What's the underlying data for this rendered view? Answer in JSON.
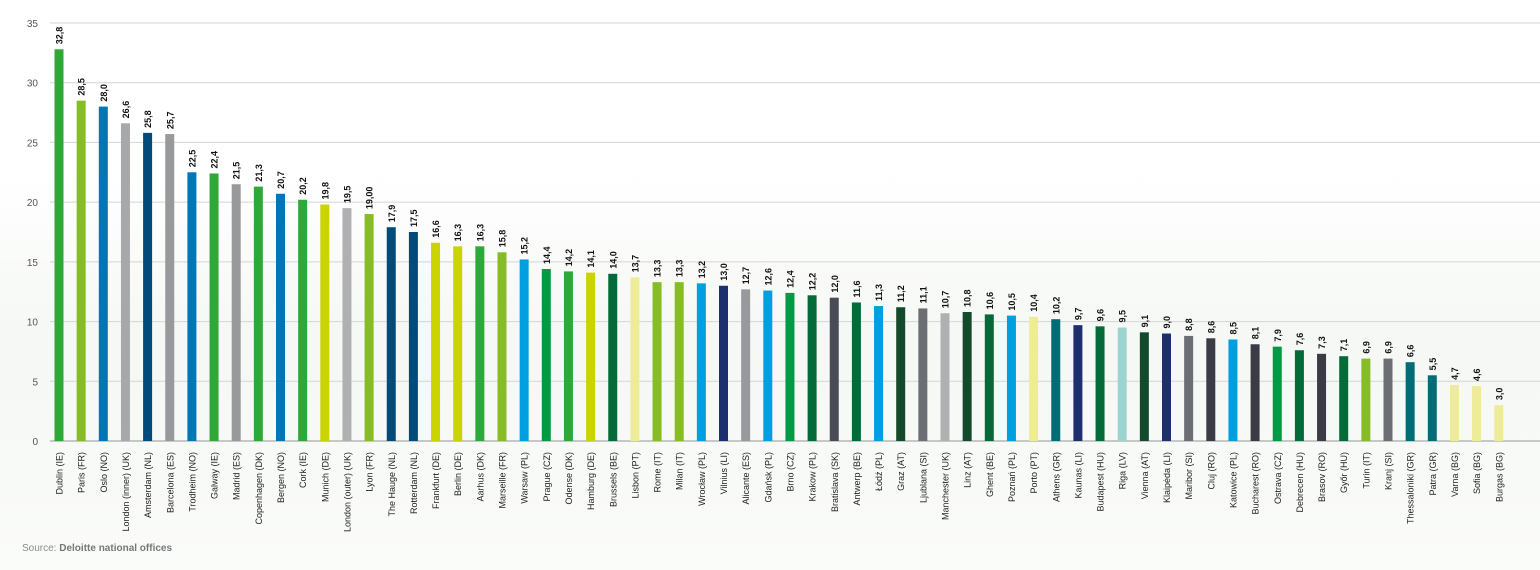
{
  "chart_data": {
    "type": "bar",
    "title": "",
    "xlabel": "",
    "ylabel": "",
    "ylim": [
      0,
      35
    ],
    "yticks": [
      0,
      5,
      10,
      15,
      20,
      25,
      30,
      35
    ],
    "grid": true,
    "legend": "none",
    "categories": [
      "Dublin (IE)",
      "Paris (FR)",
      "Oslo (NO)",
      "London (inner) (UK)",
      "Amsterdam (NL)",
      "Barcelona (ES)",
      "Trodheim (NO)",
      "Galway (IE)",
      "Madrid (ES)",
      "Copenhagen (DK)",
      "Bergen (NO)",
      "Cork (IE)",
      "Munich (DE)",
      "London (outer) (UK)",
      "Lyon (FR)",
      "The Hauge (NL)",
      "Rotterdam (NL)",
      "Frankfurt (DE)",
      "Berlin (DE)",
      "Aarhus (DK)",
      "Marseille (FR)",
      "Warsaw (PL)",
      "Prague (CZ)",
      "Odense (DK)",
      "Hamburg (DE)",
      "Brussels (BE)",
      "Lisbon (PT)",
      "Rome (IT)",
      "Milan (IT)",
      "Wrocław (PL)",
      "Vilnius (LI)",
      "Alicante (ES)",
      "Gdańsk (PL)",
      "Brno (CZ)",
      "Krakow (PL)",
      "Bratislava (SK)",
      "Antwerp (BE)",
      "Łódź (PL)",
      "Graz (AT)",
      "Ljublana (SI)",
      "Manchester (UK)",
      "Linz (AT)",
      "Ghent (BE)",
      "Poznań (PL)",
      "Porto (PT)",
      "Athens (GR)",
      "Kaunas (LI)",
      "Budapest (HU)",
      "Riga (LV)",
      "Vienna (AT)",
      "Klaipėda (LI)",
      "Maribor (SI)",
      "Cluj (RO)",
      "Katowice (PL)",
      "Bucharest (RO)",
      "Ostrava (CZ)",
      "Debrecen (HU)",
      "Brasov (RO)",
      "Győr (HU)",
      "Turin (IT)",
      "Kranj (SI)",
      "Thessaloniki (GR)",
      "Patra (GR)",
      "Varna (BG)",
      "Sofia (BG)",
      "Burgas (BG)"
    ],
    "values": [
      32.8,
      28.5,
      28.0,
      26.6,
      25.8,
      25.7,
      22.5,
      22.4,
      21.5,
      21.3,
      20.7,
      20.2,
      19.8,
      19.5,
      19.0,
      17.9,
      17.5,
      16.6,
      16.3,
      16.3,
      15.8,
      15.2,
      14.4,
      14.2,
      14.1,
      14.0,
      13.7,
      13.3,
      13.3,
      13.2,
      13.0,
      12.7,
      12.6,
      12.4,
      12.2,
      12.0,
      11.6,
      11.3,
      11.2,
      11.1,
      10.7,
      10.8,
      10.6,
      10.5,
      10.4,
      10.2,
      9.7,
      9.6,
      9.5,
      9.1,
      9.0,
      8.8,
      8.6,
      8.5,
      8.1,
      7.9,
      7.6,
      7.3,
      7.1,
      6.9,
      6.9,
      6.6,
      5.5,
      4.7,
      4.6,
      3.0
    ],
    "value_labels": [
      "32,8",
      "28,5",
      "28,0",
      "26,6",
      "25,8",
      "25,7",
      "22,5",
      "22,4",
      "21,5",
      "21,3",
      "20,7",
      "20,2",
      "19,8",
      "19,5",
      "19,00",
      "17,9",
      "17,5",
      "16,6",
      "16,3",
      "16,3",
      "15,8",
      "15,2",
      "14,4",
      "14,2",
      "14,1",
      "14,0",
      "13,7",
      "13,3",
      "13,3",
      "13,2",
      "13,0",
      "12,7",
      "12,6",
      "12,4",
      "12,2",
      "12,0",
      "11,6",
      "11,3",
      "11,2",
      "11,1",
      "10,7",
      "10,8",
      "10,6",
      "10,5",
      "10,4",
      "10,2",
      "9,7",
      "9,6",
      "9,5",
      "9,1",
      "9,0",
      "8,8",
      "8,6",
      "8,5",
      "8,1",
      "7,9",
      "7,6",
      "7,3",
      "7,1",
      "6,9",
      "6,9",
      "6,6",
      "5,5",
      "4,7",
      "4,6",
      "3,0"
    ],
    "colors": [
      "#2ea836",
      "#86bc25",
      "#0076b6",
      "#a7a8aa",
      "#004b7a",
      "#97999b",
      "#0076b6",
      "#2ea836",
      "#97999b",
      "#2ea836",
      "#0076b6",
      "#2ea836",
      "#c9d400",
      "#b0b0b2",
      "#86bc25",
      "#004b7a",
      "#004b7a",
      "#c9d400",
      "#c9d400",
      "#2ea836",
      "#86bc25",
      "#00a0e0",
      "#009a44",
      "#2ea836",
      "#c9d400",
      "#046a38",
      "#eeeb99",
      "#86bc25",
      "#86bc25",
      "#00a0e0",
      "#1e2f6f",
      "#97999b",
      "#00a0e0",
      "#009a44",
      "#046a38",
      "#4a4c55",
      "#046a38",
      "#00a0e0",
      "#134a2c",
      "#6b6e73",
      "#b0b0b2",
      "#134a2c",
      "#046a38",
      "#00a0e0",
      "#eeeb99",
      "#006c76",
      "#1e2f6f",
      "#046a38",
      "#9dd4cf",
      "#134a2c",
      "#1e2f6f",
      "#6b6e73",
      "#3a3b44",
      "#00a0e0",
      "#3a3b44",
      "#009a44",
      "#046a38",
      "#3a3b44",
      "#046a38",
      "#86bc25",
      "#6b6e73",
      "#006c76",
      "#006c76",
      "#eeeb99",
      "#eeeb99",
      "#eeeb99"
    ]
  },
  "source": {
    "prefix": "Source:",
    "text": "Deloitte national offices"
  }
}
